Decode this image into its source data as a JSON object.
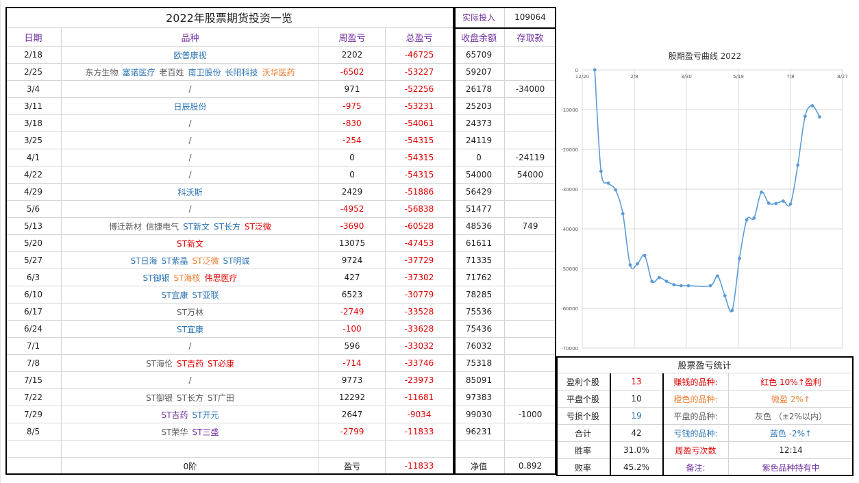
{
  "sheet": {
    "title": "2022年股票期货投资一览",
    "invest_label": "实际投入",
    "invest_value": "109064",
    "headers": {
      "date": "日期",
      "variety": "品种",
      "weekly": "周盈亏",
      "total": "总盈亏",
      "balance": "收盘余额",
      "deposit": "存取款"
    },
    "rows": [
      {
        "date": "2/18",
        "names": [
          {
            "t": "欧普康视",
            "c": "blue"
          }
        ],
        "weekly": "2202",
        "wc": "dark",
        "total": "-46725",
        "balance": "65709",
        "deposit": ""
      },
      {
        "date": "2/25",
        "names": [
          {
            "t": "东方生物",
            "c": "gray"
          },
          {
            "t": "塞诺医疗",
            "c": "blue"
          },
          {
            "t": "老百姓",
            "c": "gray"
          },
          {
            "t": "南卫股份",
            "c": "blue"
          },
          {
            "t": "长阳科技",
            "c": "blue"
          },
          {
            "t": "沃华医药",
            "c": "orange"
          }
        ],
        "weekly": "-6502",
        "wc": "red",
        "total": "-53227",
        "balance": "59207",
        "deposit": ""
      },
      {
        "date": "3/4",
        "names": [
          {
            "t": "/",
            "c": "gray"
          }
        ],
        "weekly": "971",
        "wc": "dark",
        "total": "-52256",
        "balance": "26178",
        "deposit": "-34000"
      },
      {
        "date": "3/11",
        "names": [
          {
            "t": "日辰股份",
            "c": "blue"
          }
        ],
        "weekly": "-975",
        "wc": "red",
        "total": "-53231",
        "balance": "25203",
        "deposit": ""
      },
      {
        "date": "3/18",
        "names": [
          {
            "t": "/",
            "c": "gray"
          }
        ],
        "weekly": "-830",
        "wc": "red",
        "total": "-54061",
        "balance": "24373",
        "deposit": ""
      },
      {
        "date": "3/25",
        "names": [
          {
            "t": "/",
            "c": "gray"
          }
        ],
        "weekly": "-254",
        "wc": "red",
        "total": "-54315",
        "balance": "24119",
        "deposit": ""
      },
      {
        "date": "4/1",
        "names": [
          {
            "t": "/",
            "c": "gray"
          }
        ],
        "weekly": "0",
        "wc": "dark",
        "total": "-54315",
        "balance": "0",
        "deposit": "-24119"
      },
      {
        "date": "4/22",
        "names": [
          {
            "t": "/",
            "c": "gray"
          }
        ],
        "weekly": "0",
        "wc": "dark",
        "total": "-54315",
        "balance": "54000",
        "deposit": "54000"
      },
      {
        "date": "4/29",
        "names": [
          {
            "t": "科沃斯",
            "c": "blue"
          }
        ],
        "weekly": "2429",
        "wc": "dark",
        "total": "-51886",
        "balance": "56429",
        "deposit": ""
      },
      {
        "date": "5/6",
        "names": [
          {
            "t": "/",
            "c": "gray"
          }
        ],
        "weekly": "-4952",
        "wc": "red",
        "total": "-56838",
        "balance": "51477",
        "deposit": ""
      },
      {
        "date": "5/13",
        "names": [
          {
            "t": "博迁新材",
            "c": "gray"
          },
          {
            "t": "信捷电气",
            "c": "gray"
          },
          {
            "t": "ST新文",
            "c": "blue"
          },
          {
            "t": "ST长方",
            "c": "blue"
          },
          {
            "t": "ST泛微",
            "c": "red"
          }
        ],
        "weekly": "-3690",
        "wc": "red",
        "total": "-60528",
        "balance": "48536",
        "deposit": "749"
      },
      {
        "date": "5/20",
        "names": [
          {
            "t": "ST新文",
            "c": "red"
          }
        ],
        "weekly": "13075",
        "wc": "dark",
        "total": "-47453",
        "balance": "61611",
        "deposit": ""
      },
      {
        "date": "5/27",
        "names": [
          {
            "t": "ST日海",
            "c": "blue"
          },
          {
            "t": "ST紫晶",
            "c": "blue"
          },
          {
            "t": "ST泛微",
            "c": "orange"
          },
          {
            "t": "ST明诚",
            "c": "blue"
          }
        ],
        "weekly": "9724",
        "wc": "dark",
        "total": "-37729",
        "balance": "71335",
        "deposit": ""
      },
      {
        "date": "6/3",
        "names": [
          {
            "t": "ST御银",
            "c": "blue"
          },
          {
            "t": "ST海核",
            "c": "orange"
          },
          {
            "t": "伟思医疗",
            "c": "red"
          }
        ],
        "weekly": "427",
        "wc": "dark",
        "total": "-37302",
        "balance": "71762",
        "deposit": ""
      },
      {
        "date": "6/10",
        "names": [
          {
            "t": "ST宜康",
            "c": "blue"
          },
          {
            "t": "ST亚联",
            "c": "blue"
          }
        ],
        "weekly": "6523",
        "wc": "dark",
        "total": "-30779",
        "balance": "78285",
        "deposit": ""
      },
      {
        "date": "6/17",
        "names": [
          {
            "t": "ST万林",
            "c": "gray"
          }
        ],
        "weekly": "-2749",
        "wc": "red",
        "total": "-33528",
        "balance": "75536",
        "deposit": ""
      },
      {
        "date": "6/24",
        "names": [
          {
            "t": "ST宜康",
            "c": "blue"
          }
        ],
        "weekly": "-100",
        "wc": "red",
        "total": "-33628",
        "balance": "75436",
        "deposit": ""
      },
      {
        "date": "7/1",
        "names": [
          {
            "t": "/",
            "c": "gray"
          }
        ],
        "weekly": "596",
        "wc": "dark",
        "total": "-33032",
        "balance": "76032",
        "deposit": ""
      },
      {
        "date": "7/8",
        "names": [
          {
            "t": "ST海伦",
            "c": "gray"
          },
          {
            "t": "ST吉药",
            "c": "red"
          },
          {
            "t": "ST必康",
            "c": "red"
          }
        ],
        "weekly": "-714",
        "wc": "red",
        "total": "-33746",
        "balance": "75318",
        "deposit": ""
      },
      {
        "date": "7/15",
        "names": [
          {
            "t": "/",
            "c": "gray"
          }
        ],
        "weekly": "9773",
        "wc": "dark",
        "total": "-23973",
        "balance": "85091",
        "deposit": ""
      },
      {
        "date": "7/22",
        "names": [
          {
            "t": "ST御银",
            "c": "gray"
          },
          {
            "t": "ST长方",
            "c": "gray"
          },
          {
            "t": "ST广田",
            "c": "gray"
          }
        ],
        "weekly": "12292",
        "wc": "dark",
        "total": "-11681",
        "balance": "97383",
        "deposit": ""
      },
      {
        "date": "7/29",
        "names": [
          {
            "t": "ST吉药",
            "c": "purple"
          },
          {
            "t": "ST开元",
            "c": "blue"
          }
        ],
        "weekly": "2647",
        "wc": "dark",
        "total": "-9034",
        "balance": "99030",
        "deposit": "-1000"
      },
      {
        "date": "8/5",
        "names": [
          {
            "t": "ST荣华",
            "c": "gray"
          },
          {
            "t": "ST三盛",
            "c": "purple"
          }
        ],
        "weekly": "-2799",
        "wc": "red",
        "total": "-11833",
        "balance": "96231",
        "deposit": ""
      }
    ],
    "footer": {
      "step": "0阶",
      "pl_label": "盈亏",
      "pl_value": "-11833",
      "net_label": "净值",
      "net_value": "0.892"
    }
  },
  "stats": {
    "title": "股票盈亏统计",
    "rows": [
      {
        "l1": "盈利个股",
        "v1": "13",
        "v1c": "red",
        "l2": "赚钱的品种:",
        "l2c": "red",
        "v2": "红色 10%↑盈利",
        "v2c": "red"
      },
      {
        "l1": "平盘个股",
        "v1": "10",
        "v1c": "dark",
        "l2": "橙色的品种:",
        "l2c": "orange",
        "v2": "微盈 2%↑",
        "v2c": "orange"
      },
      {
        "l1": "亏损个股",
        "v1": "19",
        "v1c": "blue",
        "l2": "平盘的品种:",
        "l2c": "gray",
        "v2": "灰色 （±2%以内）",
        "v2c": "gray"
      },
      {
        "l1": "合计",
        "v1": "42",
        "v1c": "dark",
        "l2": "亏钱的品种:",
        "l2c": "blue",
        "v2": "蓝色 -2%↑",
        "v2c": "blue"
      },
      {
        "l1": "胜率",
        "v1": "31.0%",
        "v1c": "dark",
        "l2": "周盈亏次数",
        "l2c": "red",
        "v2": "12:14",
        "v2c": "dark"
      },
      {
        "l1": "败率",
        "v1": "45.2%",
        "v1c": "dark",
        "l2": "备注:",
        "l2c": "purple",
        "v2": "紫色品种持有中",
        "v2c": "purple"
      }
    ]
  },
  "colors": {
    "red": "#e00000",
    "blue": "#2e75b6",
    "orange": "#ed7d31",
    "purple": "#7030a0",
    "gray": "#595959",
    "line": "#5b9bd5"
  },
  "chart_data": {
    "type": "line",
    "title": "股期盈亏曲线 2022",
    "x_ticks": [
      "12/20",
      "2/8",
      "3/30",
      "5/19",
      "7/8",
      "8/27"
    ],
    "y_ticks": [
      "0",
      "-10000",
      "-20000",
      "-30000",
      "-40000",
      "-50000",
      "-60000",
      "-70000"
    ],
    "ylim": [
      -70000,
      0
    ],
    "grid": true,
    "series": [
      {
        "x": [
          "2022-01-01",
          "2022-01-07",
          "2022-01-14",
          "2022-01-21",
          "2022-01-28",
          "2022-02-04",
          "2022-02-11",
          "2022-02-18",
          "2022-02-25",
          "2022-03-04",
          "2022-03-11",
          "2022-03-18",
          "2022-03-25",
          "2022-04-01",
          "2022-04-22",
          "2022-04-29",
          "2022-05-06",
          "2022-05-13",
          "2022-05-20",
          "2022-05-27",
          "2022-06-03",
          "2022-06-10",
          "2022-06-17",
          "2022-06-24",
          "2022-07-01",
          "2022-07-08",
          "2022-07-15",
          "2022-07-22",
          "2022-07-29",
          "2022-08-05"
        ],
        "y": [
          0,
          -25500,
          -28500,
          -30200,
          -36200,
          -49100,
          -48800,
          -46725,
          -53227,
          -52256,
          -53231,
          -54061,
          -54315,
          -54315,
          -54315,
          -51886,
          -56838,
          -60528,
          -47453,
          -37729,
          -37302,
          -30779,
          -33528,
          -33628,
          -33032,
          -33746,
          -23973,
          -11681,
          -9034,
          -11833
        ]
      }
    ]
  }
}
